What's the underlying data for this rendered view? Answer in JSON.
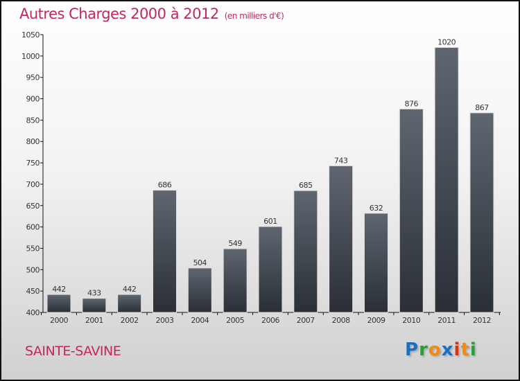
{
  "chart_data": {
    "type": "bar",
    "title": "Autres Charges 2000 à 2012",
    "subtitle": "(en milliers d'€)",
    "categories": [
      "2000",
      "2001",
      "2002",
      "2003",
      "2004",
      "2005",
      "2006",
      "2007",
      "2008",
      "2009",
      "2010",
      "2011",
      "2012"
    ],
    "values": [
      442,
      433,
      442,
      686,
      504,
      549,
      601,
      685,
      743,
      632,
      876,
      1020,
      867
    ],
    "ylim": [
      400,
      1050
    ],
    "yticks": [
      400,
      450,
      500,
      550,
      600,
      650,
      700,
      750,
      800,
      850,
      900,
      950,
      1000,
      1050
    ],
    "xlabel": "",
    "ylabel": "",
    "grid": false,
    "bar_color_top": "#5f6670",
    "bar_color_bottom": "#2a2f36"
  },
  "footer": {
    "city": "SAINTE-SAVINE"
  },
  "logo": {
    "text": "Proxiti",
    "letters": [
      {
        "c": "P",
        "color": "#1a6fc4"
      },
      {
        "c": "r",
        "color": "#2e9a3a"
      },
      {
        "c": "o",
        "color": "#f08a10"
      },
      {
        "c": "x",
        "color": "#1a6fc4"
      },
      {
        "c": "i",
        "color": "#e03010"
      },
      {
        "c": "t",
        "color": "#f08a10"
      },
      {
        "c": "i",
        "color": "#2e9a3a"
      }
    ]
  }
}
